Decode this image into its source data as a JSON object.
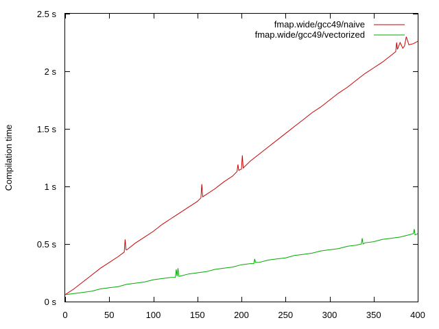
{
  "chart_data": {
    "type": "line",
    "title": "",
    "xlabel": "",
    "ylabel": "Compilation time",
    "xlim": [
      0,
      400
    ],
    "ylim": [
      0,
      2.5
    ],
    "xticks": [
      0,
      50,
      100,
      150,
      200,
      250,
      300,
      350,
      400
    ],
    "yticks": [
      0,
      0.5,
      1,
      1.5,
      2,
      2.5
    ],
    "xtick_labels": [
      "0",
      "50",
      "100",
      "150",
      "200",
      "250",
      "300",
      "350",
      "400"
    ],
    "ytick_labels": [
      "0 s",
      "0.5 s",
      "1 s",
      "1.5 s",
      "2 s",
      "2.5 s"
    ],
    "grid": false,
    "legend_position": "top-right",
    "series": [
      {
        "name": "fmap.wide/gcc49/naive",
        "color": "#cc0000",
        "x": [
          0,
          10,
          20,
          30,
          40,
          50,
          60,
          67,
          68,
          69,
          70,
          80,
          90,
          100,
          110,
          120,
          130,
          140,
          150,
          154,
          155,
          156,
          160,
          170,
          180,
          190,
          195,
          196,
          197,
          200,
          201,
          202,
          210,
          220,
          230,
          240,
          250,
          260,
          270,
          280,
          290,
          300,
          310,
          320,
          330,
          340,
          350,
          360,
          370,
          375,
          376,
          377,
          380,
          383,
          385,
          387,
          390,
          395,
          400
        ],
        "values": [
          0.06,
          0.11,
          0.17,
          0.23,
          0.29,
          0.34,
          0.39,
          0.43,
          0.54,
          0.45,
          0.45,
          0.51,
          0.56,
          0.61,
          0.67,
          0.72,
          0.77,
          0.82,
          0.87,
          0.9,
          1.02,
          0.91,
          0.93,
          0.98,
          1.04,
          1.09,
          1.13,
          1.19,
          1.14,
          1.15,
          1.27,
          1.16,
          1.22,
          1.28,
          1.34,
          1.4,
          1.46,
          1.52,
          1.58,
          1.64,
          1.69,
          1.75,
          1.81,
          1.86,
          1.92,
          1.98,
          2.03,
          2.08,
          2.14,
          2.17,
          2.25,
          2.19,
          2.25,
          2.2,
          2.22,
          2.3,
          2.23,
          2.24,
          2.26
        ]
      },
      {
        "name": "fmap.wide/gcc49/vectorized",
        "color": "#00aa00",
        "x": [
          0,
          10,
          20,
          30,
          40,
          50,
          60,
          70,
          80,
          90,
          100,
          110,
          120,
          125,
          126,
          127,
          128,
          129,
          130,
          140,
          150,
          160,
          170,
          180,
          190,
          200,
          210,
          214,
          215,
          216,
          220,
          230,
          240,
          250,
          260,
          270,
          280,
          290,
          300,
          310,
          320,
          330,
          336,
          337,
          338,
          340,
          350,
          360,
          370,
          380,
          390,
          395,
          396,
          397,
          400
        ],
        "values": [
          0.06,
          0.07,
          0.08,
          0.09,
          0.11,
          0.12,
          0.13,
          0.15,
          0.16,
          0.17,
          0.19,
          0.2,
          0.21,
          0.21,
          0.28,
          0.22,
          0.29,
          0.22,
          0.22,
          0.24,
          0.25,
          0.26,
          0.28,
          0.29,
          0.3,
          0.32,
          0.33,
          0.33,
          0.37,
          0.34,
          0.34,
          0.36,
          0.37,
          0.38,
          0.4,
          0.41,
          0.42,
          0.44,
          0.45,
          0.46,
          0.48,
          0.49,
          0.5,
          0.55,
          0.5,
          0.51,
          0.52,
          0.54,
          0.55,
          0.56,
          0.58,
          0.59,
          0.63,
          0.58,
          0.59
        ]
      }
    ]
  }
}
